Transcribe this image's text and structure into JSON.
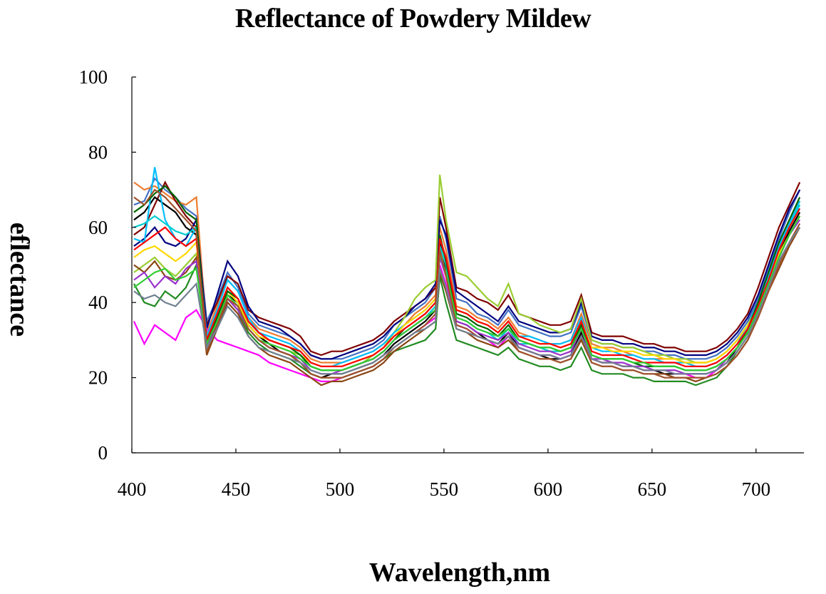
{
  "chart_data": {
    "type": "line",
    "title": "Reflectance of Powdery Mildew",
    "xlabel": "Wavelength,nm",
    "ylabel": "eflectance",
    "xlim": [
      400,
      723
    ],
    "ylim": [
      0,
      100
    ],
    "x_ticks": [
      400,
      450,
      500,
      550,
      600,
      650,
      700
    ],
    "y_ticks": [
      0,
      20,
      40,
      60,
      80,
      100
    ],
    "grid": false,
    "legend": "none",
    "x": [
      401,
      406,
      411,
      416,
      421,
      426,
      431,
      436,
      441,
      446,
      451,
      456,
      461,
      466,
      471,
      476,
      481,
      486,
      491,
      496,
      501,
      506,
      511,
      516,
      521,
      526,
      531,
      536,
      541,
      546,
      548,
      551,
      556,
      561,
      566,
      571,
      576,
      581,
      586,
      591,
      596,
      601,
      606,
      611,
      616,
      621,
      626,
      631,
      636,
      641,
      646,
      651,
      656,
      661,
      666,
      671,
      676,
      681,
      686,
      691,
      696,
      701,
      706,
      711,
      716,
      721
    ],
    "base_profile": [
      55,
      53,
      57,
      56,
      54,
      52,
      55,
      30,
      38,
      45,
      42,
      36,
      33,
      31,
      30,
      29,
      27,
      24,
      23,
      23,
      23,
      24,
      25,
      26,
      28,
      31,
      33,
      35,
      37,
      40,
      58,
      52,
      37,
      36,
      34,
      33,
      31,
      34,
      30,
      30,
      29,
      28,
      28,
      29,
      35,
      27,
      26,
      26,
      26,
      25,
      24,
      24,
      24,
      24,
      23,
      23,
      23,
      24,
      26,
      29,
      33,
      38,
      45,
      52,
      58,
      63
    ],
    "series": [
      {
        "color": "#4472c4",
        "values": [
          66,
          67,
          73,
          70,
          68,
          65,
          63,
          35,
          41,
          48,
          44,
          37,
          34,
          33,
          32,
          31,
          29,
          26,
          25,
          25,
          25,
          26,
          27,
          28,
          30,
          34,
          36,
          38,
          40,
          44,
          63,
          57,
          41,
          40,
          37,
          36,
          34,
          38,
          34,
          33,
          32,
          31,
          31,
          32,
          39,
          30,
          29,
          29,
          28,
          28,
          27,
          27,
          26,
          26,
          25,
          25,
          25,
          26,
          28,
          31,
          35,
          41,
          49,
          57,
          64,
          70
        ]
      },
      {
        "color": "#ed7d31",
        "values": [
          72,
          70,
          71,
          69,
          67,
          66,
          68,
          32,
          39,
          46,
          43,
          36,
          33,
          32,
          31,
          30,
          28,
          25,
          24,
          24,
          24,
          25,
          26,
          27,
          29,
          32,
          34,
          37,
          39,
          42,
          60,
          54,
          39,
          38,
          36,
          35,
          33,
          36,
          32,
          31,
          30,
          29,
          29,
          30,
          37,
          29,
          28,
          28,
          27,
          26,
          25,
          25,
          25,
          25,
          24,
          24,
          24,
          25,
          27,
          30,
          34,
          40,
          47,
          55,
          62,
          67
        ]
      },
      {
        "color": "#800000",
        "values": [
          58,
          60,
          66,
          72,
          67,
          63,
          60,
          34,
          40,
          47,
          45,
          38,
          36,
          35,
          34,
          33,
          31,
          27,
          26,
          27,
          27,
          28,
          29,
          30,
          32,
          35,
          37,
          39,
          41,
          44,
          68,
          60,
          44,
          43,
          41,
          40,
          38,
          42,
          37,
          36,
          35,
          34,
          34,
          35,
          42,
          32,
          31,
          31,
          31,
          30,
          29,
          29,
          28,
          28,
          27,
          27,
          27,
          28,
          30,
          33,
          37,
          44,
          52,
          60,
          66,
          72
        ]
      },
      {
        "color": "#000080",
        "values": [
          55,
          57,
          60,
          56,
          55,
          57,
          62,
          33,
          42,
          51,
          47,
          39,
          35,
          34,
          33,
          31,
          29,
          26,
          25,
          25,
          26,
          27,
          28,
          29,
          31,
          34,
          36,
          39,
          41,
          45,
          62,
          58,
          43,
          41,
          39,
          37,
          35,
          39,
          35,
          34,
          33,
          32,
          32,
          33,
          40,
          31,
          30,
          30,
          29,
          29,
          28,
          28,
          27,
          27,
          26,
          26,
          26,
          27,
          29,
          32,
          36,
          42,
          50,
          58,
          65,
          70
        ]
      },
      {
        "color": "#9acd32",
        "values": [
          48,
          50,
          52,
          49,
          47,
          50,
          53,
          28,
          36,
          43,
          40,
          34,
          31,
          29,
          28,
          27,
          26,
          23,
          22,
          22,
          22,
          23,
          24,
          26,
          28,
          32,
          36,
          41,
          44,
          46,
          74,
          62,
          48,
          47,
          44,
          41,
          39,
          45,
          37,
          36,
          34,
          33,
          32,
          33,
          41,
          30,
          29,
          29,
          28,
          28,
          27,
          26,
          26,
          25,
          25,
          24,
          24,
          25,
          27,
          30,
          34,
          40,
          47,
          55,
          61,
          66
        ]
      },
      {
        "color": "#000000",
        "values": [
          62,
          64,
          68,
          66,
          64,
          60,
          58,
          28,
          35,
          42,
          40,
          34,
          31,
          29,
          27,
          26,
          24,
          21,
          20,
          21,
          21,
          22,
          23,
          24,
          26,
          29,
          31,
          33,
          35,
          38,
          56,
          49,
          35,
          34,
          32,
          30,
          29,
          32,
          28,
          27,
          26,
          25,
          25,
          26,
          32,
          25,
          24,
          24,
          23,
          23,
          22,
          22,
          21,
          21,
          21,
          21,
          21,
          22,
          24,
          28,
          32,
          38,
          46,
          53,
          59,
          64
        ]
      },
      {
        "color": "#ff00ff",
        "values": [
          35,
          29,
          34,
          32,
          30,
          36,
          38,
          33,
          30,
          29,
          28,
          27,
          26,
          24,
          23,
          22,
          21,
          20,
          19,
          19,
          20,
          21,
          22,
          23,
          25,
          28,
          30,
          32,
          34,
          36,
          50,
          45,
          34,
          33,
          31,
          30,
          28,
          31,
          28,
          27,
          26,
          26,
          25,
          26,
          31,
          25,
          24,
          24,
          23,
          23,
          22,
          22,
          22,
          21,
          21,
          20,
          20,
          22,
          24,
          27,
          31,
          37,
          44,
          51,
          56,
          60
        ]
      },
      {
        "color": "#00bfff",
        "values": [
          57,
          56,
          76,
          62,
          57,
          55,
          60,
          31,
          38,
          46,
          43,
          36,
          32,
          31,
          30,
          29,
          27,
          24,
          23,
          23,
          24,
          25,
          26,
          27,
          29,
          32,
          34,
          36,
          38,
          41,
          57,
          52,
          38,
          37,
          35,
          34,
          32,
          35,
          31,
          31,
          30,
          29,
          29,
          30,
          36,
          28,
          27,
          27,
          26,
          26,
          25,
          25,
          24,
          24,
          24,
          23,
          23,
          24,
          26,
          29,
          34,
          40,
          47,
          55,
          61,
          67
        ]
      },
      {
        "color": "#228b22",
        "values": [
          45,
          40,
          39,
          43,
          41,
          44,
          50,
          27,
          34,
          41,
          38,
          32,
          29,
          27,
          26,
          25,
          23,
          21,
          20,
          20,
          20,
          21,
          22,
          23,
          25,
          27,
          28,
          29,
          30,
          33,
          47,
          40,
          30,
          29,
          28,
          27,
          26,
          28,
          25,
          24,
          23,
          23,
          22,
          23,
          28,
          22,
          21,
          21,
          21,
          20,
          20,
          19,
          19,
          19,
          19,
          18,
          19,
          20,
          23,
          27,
          31,
          37,
          45,
          52,
          58,
          63
        ]
      },
      {
        "color": "#ffd700",
        "values": [
          52,
          54,
          55,
          53,
          51,
          53,
          56,
          29,
          36,
          43,
          40,
          34,
          31,
          30,
          29,
          28,
          26,
          24,
          23,
          23,
          23,
          24,
          25,
          26,
          28,
          31,
          34,
          36,
          38,
          41,
          55,
          50,
          38,
          37,
          35,
          34,
          32,
          35,
          31,
          30,
          29,
          29,
          28,
          29,
          35,
          28,
          28,
          27,
          27,
          27,
          26,
          26,
          25,
          25,
          24,
          24,
          24,
          25,
          27,
          30,
          34,
          39,
          46,
          53,
          58,
          63
        ]
      },
      {
        "color": "#8b4513",
        "values": [
          50,
          48,
          51,
          47,
          46,
          48,
          52,
          26,
          33,
          40,
          37,
          31,
          28,
          26,
          25,
          24,
          22,
          20,
          18,
          19,
          19,
          20,
          21,
          22,
          24,
          27,
          29,
          31,
          33,
          35,
          48,
          43,
          33,
          32,
          30,
          29,
          28,
          30,
          27,
          26,
          25,
          25,
          24,
          25,
          30,
          24,
          23,
          23,
          22,
          22,
          21,
          21,
          21,
          20,
          20,
          19,
          20,
          21,
          23,
          26,
          30,
          36,
          43,
          49,
          55,
          60
        ]
      },
      {
        "color": "#00ced1",
        "values": [
          60,
          61,
          63,
          61,
          59,
          58,
          60,
          30,
          37,
          44,
          41,
          35,
          32,
          30,
          29,
          28,
          26,
          23,
          22,
          22,
          22,
          23,
          24,
          25,
          27,
          30,
          32,
          34,
          36,
          39,
          55,
          50,
          36,
          35,
          33,
          32,
          30,
          33,
          29,
          29,
          28,
          27,
          27,
          28,
          34,
          26,
          25,
          25,
          25,
          24,
          23,
          23,
          23,
          23,
          22,
          22,
          22,
          23,
          25,
          28,
          33,
          39,
          46,
          54,
          60,
          66
        ]
      },
      {
        "color": "#006400",
        "values": [
          64,
          66,
          69,
          71,
          68,
          64,
          62,
          29,
          36,
          43,
          41,
          35,
          32,
          30,
          29,
          28,
          26,
          23,
          22,
          22,
          22,
          23,
          24,
          25,
          27,
          30,
          33,
          35,
          37,
          40,
          58,
          51,
          37,
          36,
          34,
          33,
          31,
          34,
          30,
          29,
          28,
          28,
          27,
          28,
          34,
          26,
          25,
          25,
          25,
          24,
          23,
          23,
          23,
          23,
          22,
          22,
          22,
          23,
          25,
          28,
          33,
          40,
          48,
          56,
          62,
          68
        ]
      },
      {
        "color": "#9932cc",
        "values": [
          46,
          48,
          44,
          47,
          45,
          49,
          51,
          28,
          34,
          41,
          38,
          33,
          30,
          28,
          27,
          26,
          25,
          22,
          21,
          21,
          22,
          23,
          24,
          25,
          27,
          30,
          32,
          34,
          36,
          38,
          52,
          47,
          35,
          34,
          32,
          31,
          30,
          32,
          29,
          28,
          27,
          27,
          26,
          27,
          33,
          25,
          25,
          24,
          24,
          23,
          23,
          22,
          22,
          22,
          21,
          21,
          21,
          22,
          25,
          28,
          32,
          38,
          45,
          52,
          58,
          62
        ]
      },
      {
        "color": "#ff0000",
        "values": [
          54,
          56,
          58,
          60,
          57,
          55,
          57,
          30,
          37,
          44,
          41,
          35,
          32,
          30,
          29,
          28,
          27,
          24,
          23,
          23,
          23,
          24,
          25,
          26,
          28,
          31,
          33,
          35,
          37,
          40,
          57,
          52,
          38,
          37,
          35,
          34,
          32,
          35,
          31,
          30,
          29,
          29,
          28,
          29,
          35,
          27,
          26,
          26,
          26,
          25,
          24,
          24,
          24,
          24,
          23,
          23,
          23,
          24,
          26,
          29,
          33,
          39,
          46,
          54,
          60,
          65
        ]
      },
      {
        "color": "#32cd32",
        "values": [
          44,
          46,
          48,
          49,
          46,
          47,
          49,
          29,
          35,
          42,
          39,
          33,
          30,
          29,
          28,
          27,
          25,
          23,
          22,
          22,
          22,
          23,
          24,
          25,
          27,
          30,
          32,
          34,
          36,
          38,
          53,
          48,
          36,
          35,
          33,
          32,
          31,
          33,
          30,
          29,
          28,
          28,
          27,
          28,
          33,
          26,
          25,
          25,
          25,
          24,
          24,
          23,
          23,
          23,
          22,
          22,
          22,
          23,
          25,
          28,
          32,
          38,
          45,
          52,
          58,
          63
        ]
      },
      {
        "color": "#a0522d",
        "values": [
          68,
          66,
          70,
          68,
          65,
          62,
          59,
          27,
          34,
          41,
          39,
          33,
          30,
          28,
          27,
          26,
          24,
          21,
          20,
          20,
          20,
          21,
          22,
          23,
          25,
          28,
          30,
          32,
          34,
          37,
          54,
          47,
          34,
          33,
          31,
          30,
          29,
          31,
          27,
          26,
          25,
          25,
          24,
          25,
          31,
          24,
          23,
          23,
          22,
          22,
          21,
          21,
          20,
          20,
          20,
          20,
          20,
          21,
          23,
          26,
          30,
          36,
          43,
          50,
          56,
          61
        ]
      },
      {
        "color": "#708090",
        "values": [
          43,
          41,
          42,
          40,
          39,
          42,
          45,
          28,
          33,
          39,
          36,
          31,
          28,
          27,
          26,
          25,
          24,
          22,
          21,
          21,
          21,
          22,
          23,
          24,
          26,
          28,
          30,
          32,
          33,
          35,
          49,
          44,
          33,
          32,
          31,
          30,
          29,
          31,
          28,
          27,
          26,
          26,
          25,
          26,
          31,
          25,
          24,
          24,
          23,
          23,
          22,
          22,
          22,
          21,
          21,
          21,
          21,
          22,
          24,
          27,
          31,
          37,
          44,
          51,
          56,
          60
        ]
      }
    ]
  }
}
